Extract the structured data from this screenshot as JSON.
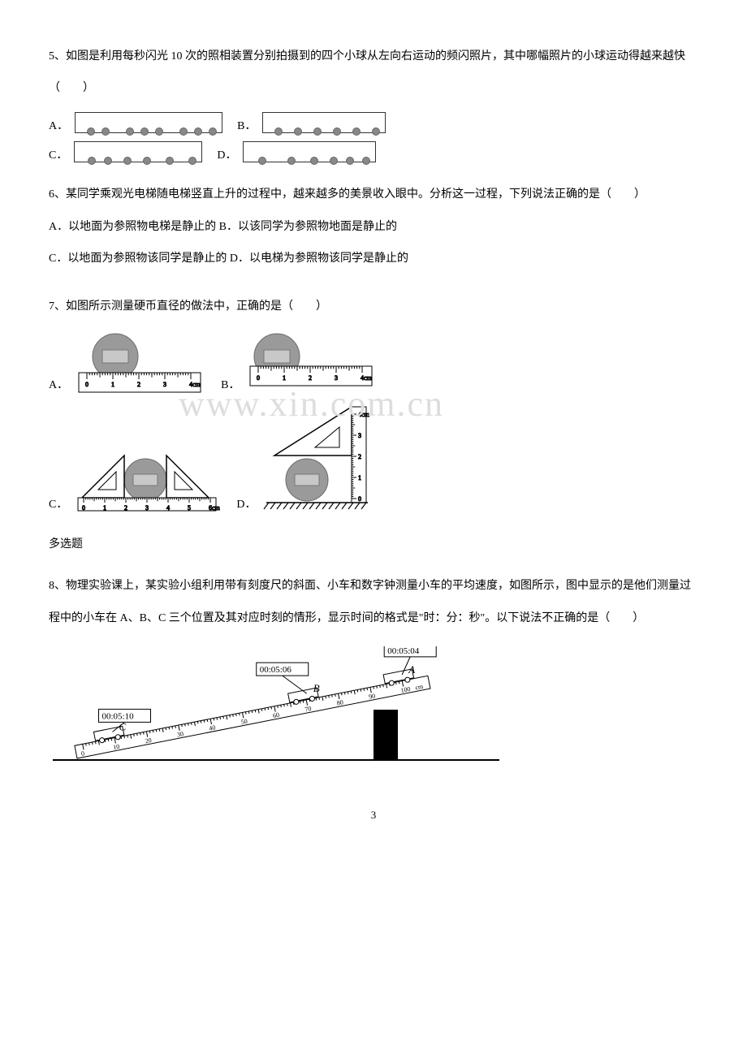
{
  "q5": {
    "text": "5、如图是利用每秒闪光 10 次的照相装置分别拍摄到的四个小球从左向右运动的频闪照片，其中哪幅照片的小球运动得越来越快（　　）",
    "options": {
      "A": {
        "label": "A．",
        "gaps": [
          0,
          8,
          8,
          20,
          8,
          8,
          20,
          8,
          8
        ]
      },
      "B": {
        "label": "B．",
        "gaps": [
          0,
          8,
          14,
          14,
          14,
          14,
          14
        ]
      },
      "C": {
        "label": "C．",
        "gaps": [
          0,
          10,
          10,
          14,
          14,
          18,
          18
        ]
      },
      "D": {
        "label": "D．",
        "gaps": [
          0,
          12,
          26,
          18,
          14,
          10,
          10
        ]
      }
    }
  },
  "q6": {
    "text": "6、某同学乘观光电梯随电梯竖直上升的过程中，越来越多的美景收入眼中。分析这一过程，下列说法正确的是（　　）",
    "optA": "A．以地面为参照物电梯是静止的 B．以该同学为参照物地面是静止的",
    "optC": "C．以地面为参照物该同学是静止的 D．以电梯为参照物该同学是静止的"
  },
  "q7": {
    "text": "7、如图所示测量硬币直径的做法中，正确的是（　　）",
    "ruler_a": {
      "ticks": [
        "0",
        "1",
        "2",
        "3",
        "4cm"
      ]
    },
    "ruler_b": {
      "ticks": [
        "0",
        "1",
        "2",
        "3",
        "4cm"
      ]
    },
    "ruler_c": {
      "ticks": [
        "0",
        "1",
        "2",
        "3",
        "4",
        "5",
        "6cm"
      ]
    },
    "ruler_d": {
      "ticks": [
        "0",
        "1",
        "2",
        "3",
        "4cm"
      ]
    },
    "A": "A．",
    "B": "B．",
    "C": "C．",
    "D": "D．"
  },
  "multi_label": "多选题",
  "q8": {
    "text": "8、物理实验课上，某实验小组利用带有刻度尺的斜面、小车和数字钟测量小车的平均速度，如图所示，图中显示的是他们测量过程中的小车在 A、B、C 三个位置及其对应时刻的情形，显示时间的格式是\"时：分：秒\"。以下说法不正确的是（　　）",
    "timeA": "00:05:04",
    "timeB": "00:05:06",
    "timeC": "00:05:10",
    "labelA": "A",
    "labelB": "B",
    "labelC": "C",
    "unit": "cm",
    "ticks": [
      "0",
      "10",
      "20",
      "30",
      "40",
      "50",
      "60",
      "70",
      "80",
      "90",
      "100"
    ]
  },
  "watermark": "www.xin.com.cn",
  "page_number": "3",
  "colors": {
    "text": "#000000",
    "watermark": "#dddddd",
    "ball_fill": "#888888",
    "ball_stroke": "#666666",
    "coin_fill": "#9a9a9a",
    "coin_stroke": "#6b6b6b",
    "line": "#000000"
  }
}
